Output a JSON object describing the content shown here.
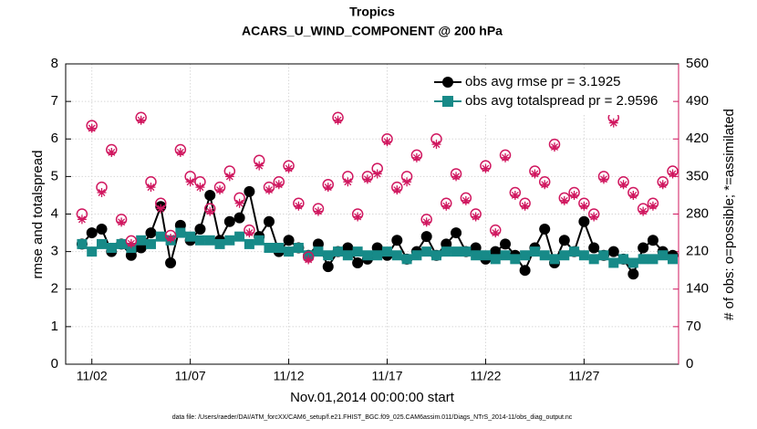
{
  "chart_data": {
    "type": "line",
    "title": "Tropics",
    "subtitle": "ACARS_U_WIND_COMPONENT @ 200 hPa",
    "x_label": "Nov.01,2014 00:00:00 start",
    "y_label": "rmse and totalspread",
    "y2_label": "# of obs: o=possible; *=assimilated",
    "footnote": "data file: /Users/raeder/DAI/ATM_forcXX/CAM6_setup/f.e21.FHIST_BGC.f09_025.CAM6assim.011/Diags_NTrS_2014-11/obs_diag_output.nc",
    "x": [
      0.5,
      1,
      1.5,
      2,
      2.5,
      3,
      3.5,
      4,
      4.5,
      5,
      5.5,
      6,
      6.5,
      7,
      7.5,
      8,
      8.5,
      9,
      9.5,
      10,
      10.5,
      11,
      11.5,
      12,
      12.5,
      13,
      13.5,
      14,
      14.5,
      15,
      15.5,
      16,
      16.5,
      17,
      17.5,
      18,
      18.5,
      19,
      19.5,
      20,
      20.5,
      21,
      21.5,
      22,
      22.5,
      23,
      23.5,
      24,
      24.5,
      25,
      25.5,
      26,
      26.5,
      27,
      27.5,
      28,
      28.5,
      29,
      29.5,
      30,
      30.5
    ],
    "xlim": [
      -0.33,
      30.8
    ],
    "xticks": [
      {
        "value": 1,
        "label": "11/02"
      },
      {
        "value": 6,
        "label": "11/07"
      },
      {
        "value": 11,
        "label": "11/12"
      },
      {
        "value": 16,
        "label": "11/17"
      },
      {
        "value": 21,
        "label": "11/22"
      },
      {
        "value": 26,
        "label": "11/27"
      }
    ],
    "ylim": [
      0,
      8
    ],
    "yticks": [
      0,
      1,
      2,
      3,
      4,
      5,
      6,
      7,
      8
    ],
    "y2lim": [
      0,
      560
    ],
    "y2ticks": [
      0,
      70,
      140,
      210,
      280,
      350,
      420,
      490,
      560
    ],
    "y2_color": "#d0175f",
    "grid": true,
    "legend": "top-right",
    "series": [
      {
        "name": "obs avg rmse pr = 3.1925",
        "color": "#000000",
        "marker": "circle",
        "values": [
          3.2,
          3.5,
          3.6,
          3.0,
          3.2,
          2.9,
          3.1,
          3.5,
          4.2,
          2.7,
          3.7,
          3.3,
          3.6,
          4.5,
          3.3,
          3.8,
          3.9,
          4.6,
          3.4,
          3.8,
          3.0,
          3.3,
          3.1,
          2.9,
          3.2,
          2.6,
          3.0,
          3.1,
          2.7,
          2.8,
          3.1,
          2.9,
          3.3,
          2.8,
          3.0,
          3.4,
          2.9,
          3.2,
          3.5,
          3.0,
          3.1,
          2.8,
          3.0,
          3.2,
          2.9,
          2.5,
          3.1,
          3.6,
          2.7,
          3.3,
          3.0,
          3.8,
          3.1,
          2.9,
          3.0,
          2.8,
          2.4,
          3.1,
          3.3,
          3.0,
          2.9
        ]
      },
      {
        "name": "obs avg totalspread pr = 2.9596",
        "color": "#178a88",
        "marker": "square",
        "values": [
          3.2,
          3.0,
          3.2,
          3.1,
          3.2,
          3.1,
          3.3,
          3.2,
          3.4,
          3.3,
          3.5,
          3.4,
          3.3,
          3.3,
          3.2,
          3.3,
          3.4,
          3.2,
          3.3,
          3.1,
          3.1,
          3.0,
          3.1,
          2.9,
          3.0,
          2.9,
          3.0,
          2.9,
          3.0,
          2.9,
          2.9,
          3.0,
          2.9,
          2.8,
          2.9,
          3.0,
          2.9,
          3.0,
          3.0,
          3.0,
          2.9,
          2.9,
          2.8,
          2.9,
          2.8,
          2.9,
          3.0,
          2.9,
          2.8,
          2.9,
          3.0,
          2.9,
          2.8,
          2.9,
          2.7,
          2.8,
          2.7,
          2.8,
          2.8,
          2.9,
          2.8
        ]
      },
      {
        "color": "#d0175f",
        "marker": "open-circle",
        "axis": "y2",
        "values": [
          280,
          445,
          330,
          400,
          270,
          230,
          460,
          340,
          300,
          240,
          400,
          350,
          340,
          290,
          330,
          360,
          310,
          250,
          380,
          330,
          340,
          370,
          300,
          200,
          290,
          335,
          460,
          350,
          280,
          350,
          365,
          420,
          330,
          350,
          390,
          270,
          420,
          300,
          355,
          310,
          280,
          370,
          250,
          390,
          320,
          300,
          360,
          340,
          410,
          310,
          320,
          300,
          280,
          350,
          460,
          340,
          320,
          290,
          300,
          340,
          360
        ]
      },
      {
        "color": "#d0175f",
        "marker": "asterisk",
        "axis": "y2",
        "values": [
          270,
          440,
          320,
          395,
          265,
          225,
          455,
          330,
          290,
          235,
          395,
          340,
          330,
          285,
          325,
          350,
          300,
          245,
          370,
          325,
          335,
          365,
          295,
          195,
          285,
          330,
          455,
          340,
          275,
          345,
          355,
          415,
          325,
          340,
          385,
          265,
          410,
          295,
          350,
          305,
          275,
          365,
          245,
          385,
          315,
          295,
          355,
          335,
          405,
          305,
          315,
          295,
          275,
          345,
          450,
          335,
          315,
          285,
          295,
          335,
          355
        ]
      }
    ]
  }
}
